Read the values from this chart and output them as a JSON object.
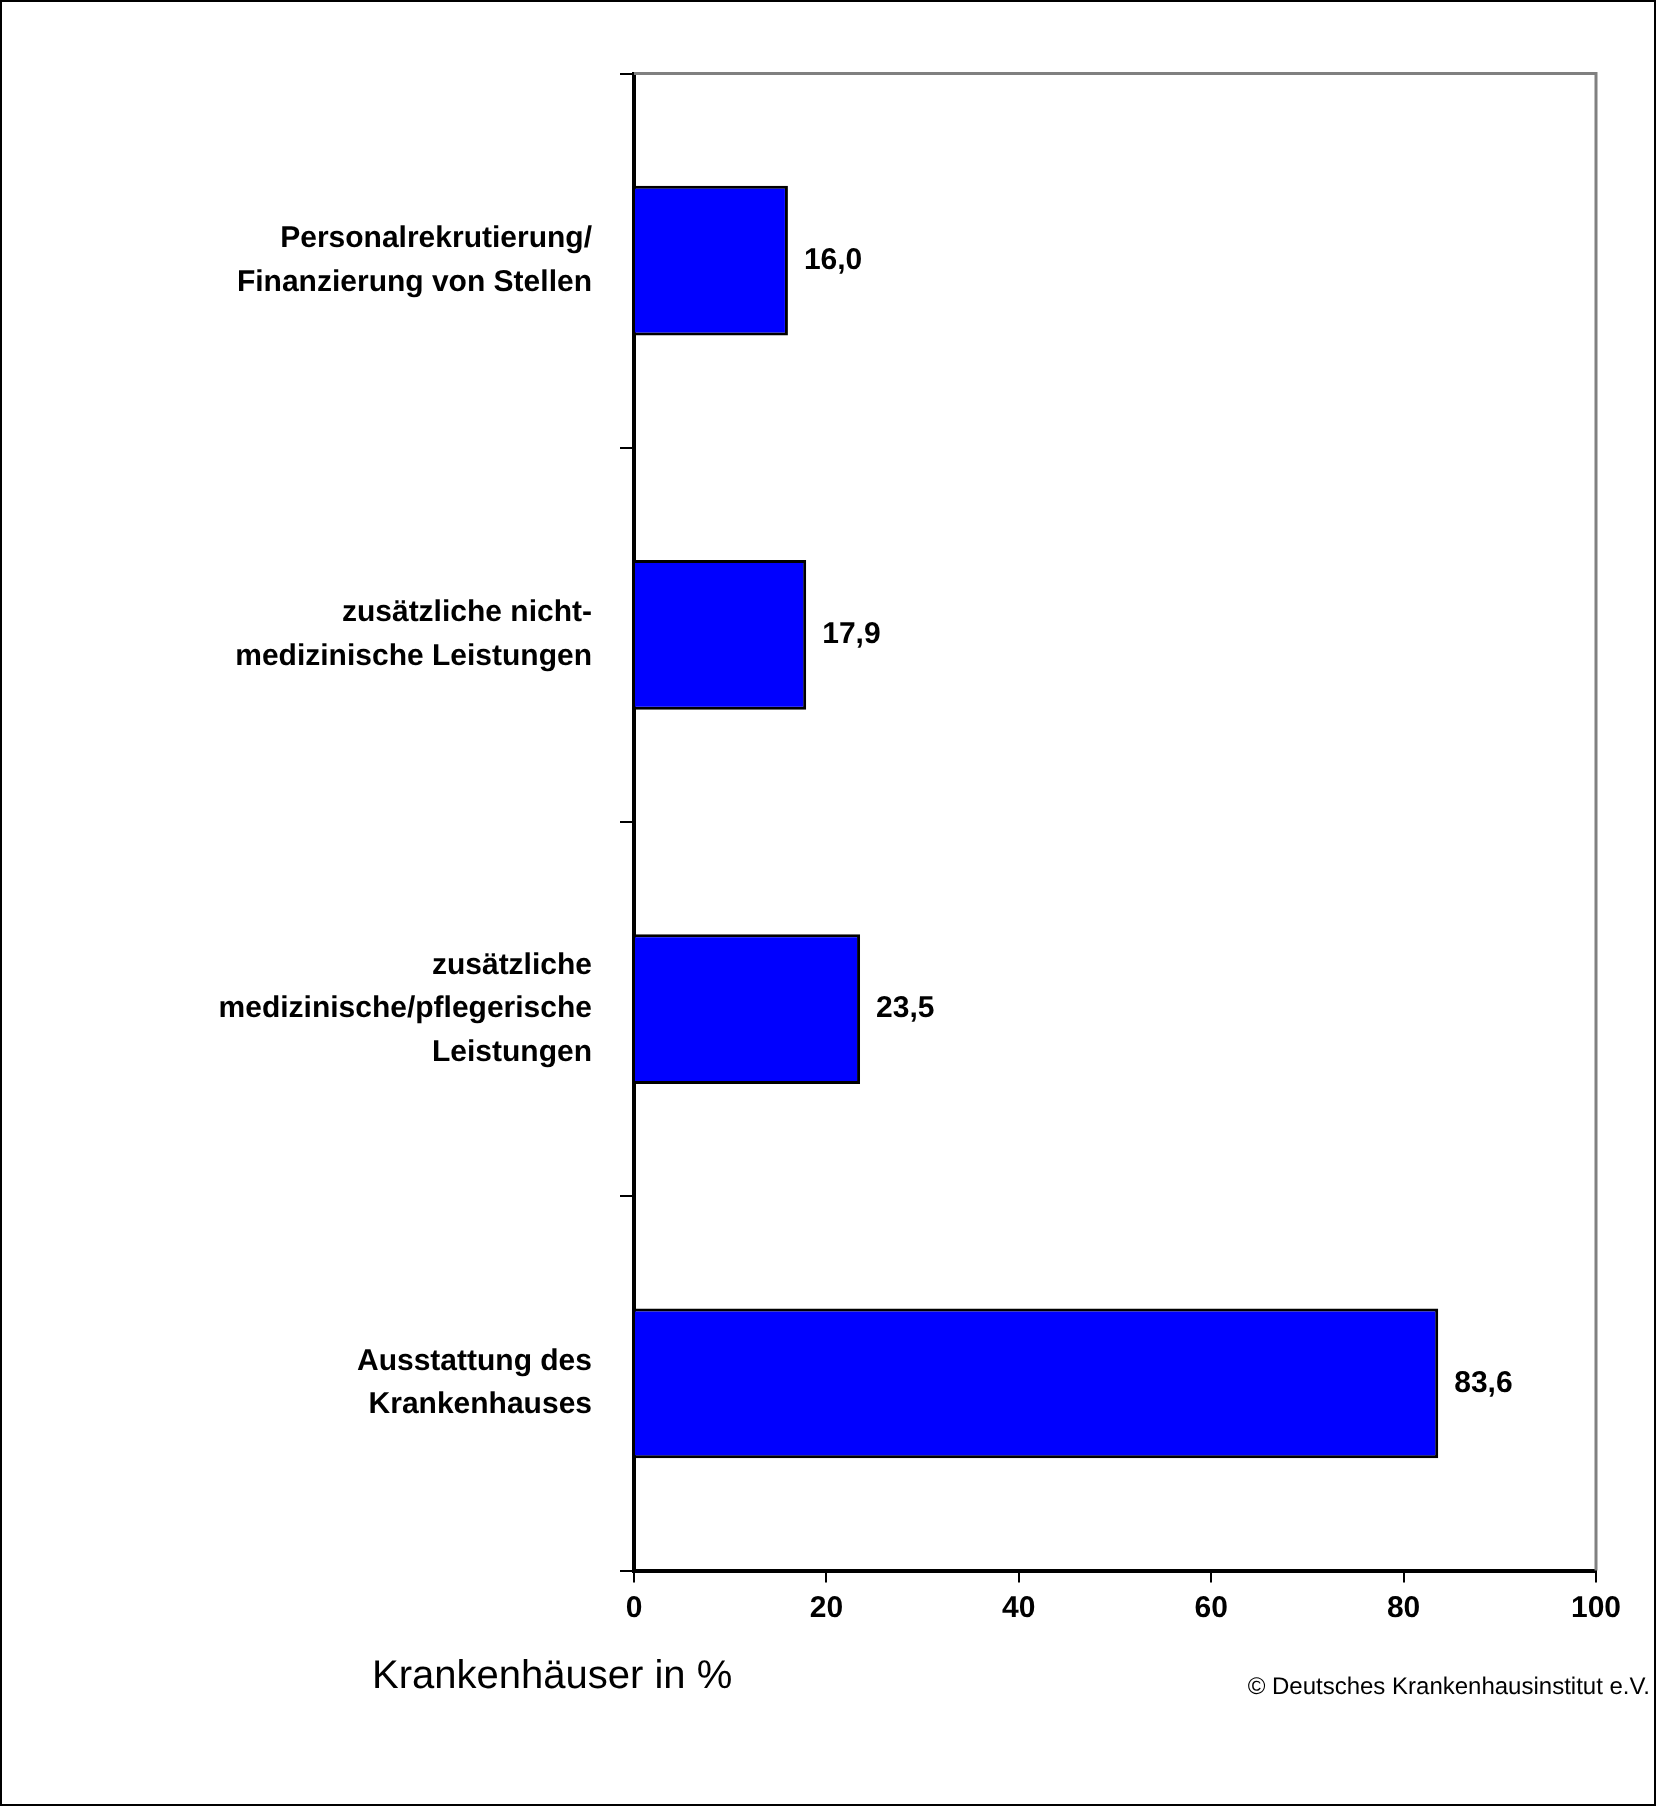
{
  "chart_data": {
    "type": "bar",
    "orientation": "horizontal",
    "categories": [
      "Personalrekrutierung/ Finanzierung von Stellen",
      "zusätzliche nicht-medizinische Leistungen",
      "zusätzliche medizinische/pflegerische Leistungen",
      "Ausstattung des Krankenhauses"
    ],
    "values": [
      16.0,
      17.9,
      23.5,
      83.6
    ],
    "value_labels": [
      "16,0",
      "17,9",
      "23,5",
      "83,6"
    ],
    "color": "#0000ff",
    "xlim": [
      0,
      100
    ],
    "xticks": [
      0,
      20,
      40,
      60,
      80,
      100
    ],
    "xlabel": "Krankenhäuser in %",
    "annotations": [
      "© Deutsches Krankenhausinstitut e.V."
    ]
  }
}
